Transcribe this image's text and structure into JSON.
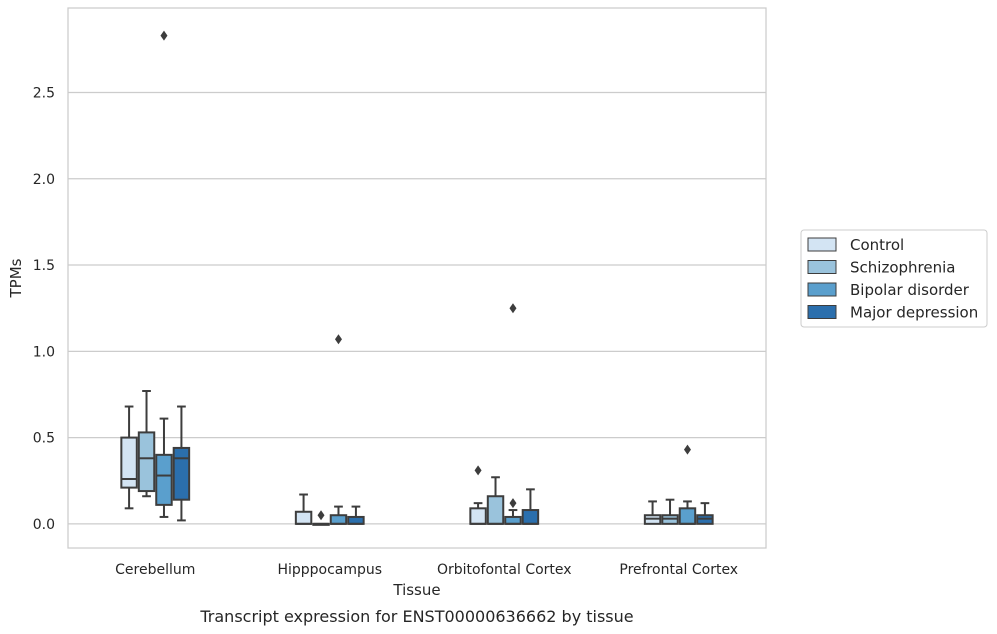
{
  "caption": "Transcript expression for ENST00000636662 by tissue",
  "chart_data": {
    "type": "boxplot",
    "xlabel": "Tissue",
    "ylabel": "TPMs",
    "ylim": [
      -0.14,
      2.99
    ],
    "yticks": [
      0.0,
      0.5,
      1.0,
      1.5,
      2.0,
      2.5
    ],
    "ytick_labels": [
      "0.0",
      "0.5",
      "1.0",
      "1.5",
      "2.0",
      "2.5"
    ],
    "grid": "horizontal",
    "legend_position": "right",
    "categories": [
      "Cerebellum",
      "Hipppocampus",
      "Orbitofontal Cortex",
      "Prefrontal Cortex"
    ],
    "series": [
      {
        "name": "Control",
        "color": "#d3e4f3",
        "boxes": [
          {
            "q1": 0.21,
            "median": 0.26,
            "q3": 0.5,
            "whisker_low": 0.09,
            "whisker_high": 0.68,
            "outliers": []
          },
          {
            "q1": 0.0,
            "median": 0.0,
            "q3": 0.07,
            "whisker_low": 0.0,
            "whisker_high": 0.17,
            "outliers": []
          },
          {
            "q1": 0.0,
            "median": 0.0,
            "q3": 0.09,
            "whisker_low": 0.0,
            "whisker_high": 0.12,
            "outliers": [
              0.31
            ]
          },
          {
            "q1": 0.0,
            "median": 0.03,
            "q3": 0.05,
            "whisker_low": 0.0,
            "whisker_high": 0.13,
            "outliers": []
          }
        ]
      },
      {
        "name": "Schizophrenia",
        "color": "#9ac3dc",
        "boxes": [
          {
            "q1": 0.19,
            "median": 0.38,
            "q3": 0.53,
            "whisker_low": 0.16,
            "whisker_high": 0.77,
            "outliers": []
          },
          {
            "q1": 0.0,
            "median": 0.0,
            "q3": 0.0,
            "whisker_low": 0.0,
            "whisker_high": 0.0,
            "outliers": [
              0.05
            ]
          },
          {
            "q1": 0.0,
            "median": 0.0,
            "q3": 0.16,
            "whisker_low": 0.0,
            "whisker_high": 0.27,
            "outliers": []
          },
          {
            "q1": 0.0,
            "median": 0.03,
            "q3": 0.05,
            "whisker_low": 0.0,
            "whisker_high": 0.14,
            "outliers": []
          }
        ]
      },
      {
        "name": "Bipolar disorder",
        "color": "#5a9fcd",
        "boxes": [
          {
            "q1": 0.11,
            "median": 0.28,
            "q3": 0.4,
            "whisker_low": 0.04,
            "whisker_high": 0.61,
            "outliers": [
              2.83
            ]
          },
          {
            "q1": 0.0,
            "median": 0.0,
            "q3": 0.05,
            "whisker_low": 0.0,
            "whisker_high": 0.1,
            "outliers": [
              1.07
            ]
          },
          {
            "q1": 0.0,
            "median": 0.0,
            "q3": 0.04,
            "whisker_low": 0.0,
            "whisker_high": 0.08,
            "outliers": [
              0.12,
              1.25
            ]
          },
          {
            "q1": 0.0,
            "median": 0.0,
            "q3": 0.09,
            "whisker_low": 0.0,
            "whisker_high": 0.13,
            "outliers": [
              0.43
            ]
          }
        ]
      },
      {
        "name": "Major depression",
        "color": "#2b6fad",
        "boxes": [
          {
            "q1": 0.14,
            "median": 0.38,
            "q3": 0.44,
            "whisker_low": 0.02,
            "whisker_high": 0.68,
            "outliers": []
          },
          {
            "q1": 0.0,
            "median": 0.0,
            "q3": 0.04,
            "whisker_low": 0.0,
            "whisker_high": 0.1,
            "outliers": []
          },
          {
            "q1": 0.0,
            "median": 0.0,
            "q3": 0.08,
            "whisker_low": 0.0,
            "whisker_high": 0.2,
            "outliers": []
          },
          {
            "q1": 0.0,
            "median": 0.03,
            "q3": 0.05,
            "whisker_low": 0.0,
            "whisker_high": 0.12,
            "outliers": []
          }
        ]
      }
    ]
  }
}
